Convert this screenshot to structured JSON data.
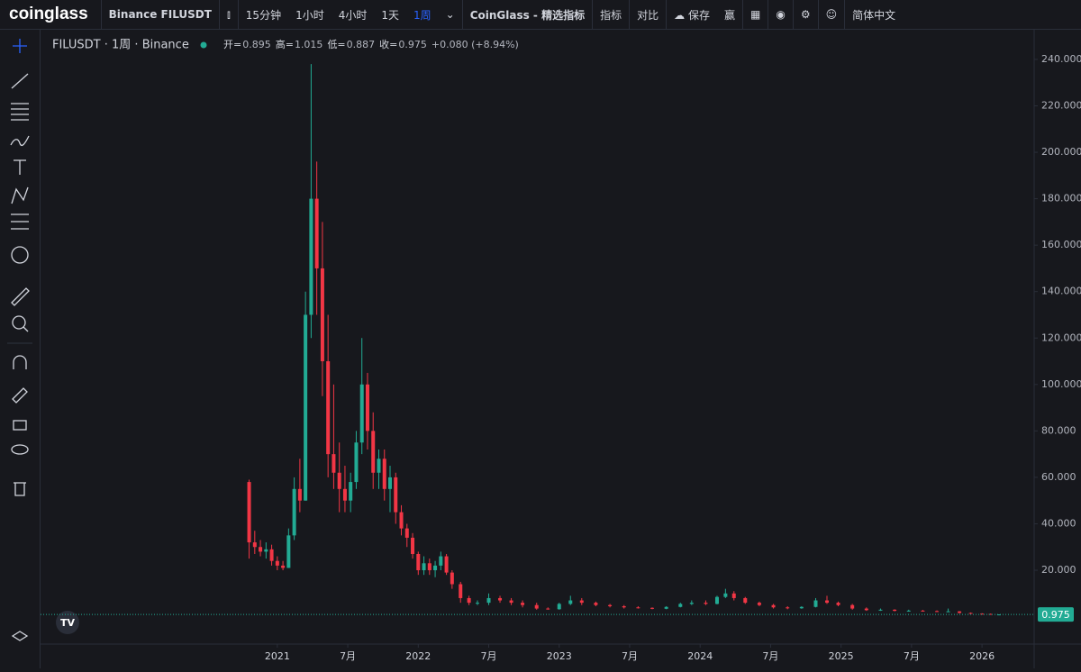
{
  "ui": {
    "logo": "coinglass",
    "symbol": "Binance FILUSDT",
    "intervals": [
      "15分钟",
      "1小时",
      "4小时",
      "1天",
      "1周"
    ],
    "indicators_brand": "CoinGlass - 精选指标",
    "indicators": "指标",
    "compare": "对比",
    "save": "保存",
    "win": "赢",
    "language": "简体中文"
  },
  "chart_data": {
    "type": "candlestick",
    "title": "FILUSDT · 1周 · Binance",
    "ohlc_labels": [
      "开=",
      "高=",
      "低=",
      "收="
    ],
    "change": "+0.080 (+8.94%)",
    "up_color": "#22ab94",
    "down_color": "#f23645",
    "x": [
      2020.8,
      2020.84,
      2020.88,
      2020.92,
      2020.96,
      2021.0,
      2021.04,
      2021.08,
      2021.12,
      2021.16,
      2021.2,
      2021.24,
      2021.28,
      2021.32,
      2021.36,
      2021.4,
      2021.44,
      2021.48,
      2021.52,
      2021.56,
      2021.6,
      2021.64,
      2021.68,
      2021.72,
      2021.76,
      2021.8,
      2021.84,
      2021.88,
      2021.92,
      2021.96,
      2022.0,
      2022.04,
      2022.08,
      2022.12,
      2022.16,
      2022.2,
      2022.24,
      2022.3,
      2022.36,
      2022.42,
      2022.5,
      2022.58,
      2022.66,
      2022.74,
      2022.84,
      2022.92,
      2023.0,
      2023.08,
      2023.16,
      2023.26,
      2023.36,
      2023.46,
      2023.56,
      2023.66,
      2023.76,
      2023.86,
      2023.94,
      2024.04,
      2024.12,
      2024.18,
      2024.24,
      2024.32,
      2024.42,
      2024.52,
      2024.62,
      2024.72,
      2024.82,
      2024.9,
      2024.98,
      2025.08,
      2025.18,
      2025.28,
      2025.38,
      2025.48,
      2025.58,
      2025.68,
      2025.76,
      2025.84,
      2025.92,
      2026.0,
      2026.06,
      2026.12
    ],
    "open": [
      58,
      32,
      30,
      28,
      29,
      24,
      22,
      21,
      35,
      55,
      50,
      130,
      180,
      150,
      110,
      70,
      62,
      55,
      50,
      58,
      75,
      100,
      80,
      62,
      68,
      55,
      60,
      45,
      38,
      34,
      27,
      20,
      23,
      20,
      22,
      26,
      19,
      14,
      8,
      6,
      6,
      8,
      7,
      6,
      5,
      3.5,
      3.2,
      5.5,
      7,
      6,
      5,
      4.5,
      4,
      3.8,
      3.4,
      4.2,
      5.5,
      6,
      5.5,
      8.5,
      10,
      8,
      6,
      5,
      4,
      3.6,
      4.2,
      7,
      6,
      5,
      3.5,
      2.8,
      3,
      2.5,
      2.6,
      2.4,
      2.2,
      2.3,
      1.6,
      1.3,
      1.2,
      0.895
    ],
    "high": [
      59,
      37,
      33,
      32,
      31,
      26,
      24,
      38,
      60,
      68,
      140,
      238,
      196,
      170,
      130,
      100,
      75,
      65,
      62,
      80,
      120,
      105,
      88,
      72,
      72,
      65,
      62,
      48,
      40,
      36,
      28,
      26,
      25,
      24,
      28,
      27,
      20,
      15,
      9,
      7,
      10,
      9,
      8,
      7,
      6,
      4,
      6,
      9,
      8,
      6.5,
      5.5,
      5,
      4.5,
      4,
      4.5,
      6,
      7,
      7,
      9,
      12,
      11,
      8.5,
      6.5,
      5.5,
      4.5,
      4.5,
      8,
      9,
      6.5,
      5.5,
      4,
      3.5,
      3.2,
      3,
      2.9,
      2.7,
      3.5,
      2.4,
      1.8,
      1.5,
      1.3,
      1.015
    ],
    "low": [
      25,
      27,
      26,
      25,
      22,
      20,
      20,
      21,
      33,
      45,
      50,
      120,
      130,
      95,
      60,
      55,
      45,
      45,
      45,
      55,
      70,
      72,
      55,
      55,
      50,
      45,
      40,
      35,
      30,
      25,
      18,
      18,
      18,
      17,
      20,
      18,
      12,
      6,
      5,
      5,
      5,
      6,
      5,
      4,
      3,
      3,
      3,
      5,
      5,
      4.5,
      4,
      3.5,
      3.5,
      3.2,
      3.2,
      4,
      5,
      5,
      5.3,
      8,
      7,
      5.5,
      4.5,
      3.5,
      3.2,
      3.4,
      4,
      5.5,
      4.5,
      3,
      2.5,
      2.5,
      2.3,
      2.2,
      2.2,
      2,
      2,
      1.4,
      1.2,
      1.1,
      0.9,
      0.887
    ],
    "close": [
      32,
      30,
      28,
      29,
      24,
      22,
      21,
      35,
      55,
      50,
      130,
      180,
      150,
      110,
      70,
      62,
      55,
      50,
      58,
      75,
      100,
      80,
      62,
      68,
      55,
      60,
      45,
      38,
      34,
      27,
      20,
      23,
      20,
      22,
      26,
      19,
      14,
      8,
      6,
      6,
      8,
      7,
      6,
      5,
      3.5,
      3.2,
      5.5,
      7,
      6,
      5,
      4.5,
      4,
      3.8,
      3.4,
      4.2,
      5.5,
      6,
      5.5,
      8.5,
      10,
      8,
      6,
      5,
      4,
      3.6,
      4.2,
      7,
      6,
      5,
      3.5,
      2.8,
      3,
      2.5,
      2.6,
      2.4,
      2.2,
      2.3,
      1.6,
      1.3,
      1.2,
      0.9,
      0.975
    ],
    "xlim": [
      2019.32,
      2026.37
    ],
    "ylim": [
      -11.8,
      252
    ],
    "xticks": [
      {
        "value": 2021,
        "label": "2021"
      },
      {
        "value": 2021.5,
        "label": "7月"
      },
      {
        "value": 2022,
        "label": "2022"
      },
      {
        "value": 2022.5,
        "label": "7月"
      },
      {
        "value": 2023,
        "label": "2023"
      },
      {
        "value": 2023.5,
        "label": "7月"
      },
      {
        "value": 2024,
        "label": "2024"
      },
      {
        "value": 2024.5,
        "label": "7月"
      },
      {
        "value": 2025,
        "label": "2025"
      },
      {
        "value": 2025.5,
        "label": "7月"
      },
      {
        "value": 2026,
        "label": "2026"
      }
    ],
    "yticks": [
      {
        "value": 20,
        "label": "20.000"
      },
      {
        "value": 40,
        "label": "40.000"
      },
      {
        "value": 60,
        "label": "60.000"
      },
      {
        "value": 80,
        "label": "80.000"
      },
      {
        "value": 100,
        "label": "100.000"
      },
      {
        "value": 120,
        "label": "120.000"
      },
      {
        "value": 140,
        "label": "140.000"
      },
      {
        "value": 160,
        "label": "160.000"
      },
      {
        "value": 180,
        "label": "180.000"
      },
      {
        "value": 200,
        "label": "200.000"
      },
      {
        "value": 220,
        "label": "220.000"
      },
      {
        "value": 240,
        "label": "240.000"
      }
    ]
  }
}
